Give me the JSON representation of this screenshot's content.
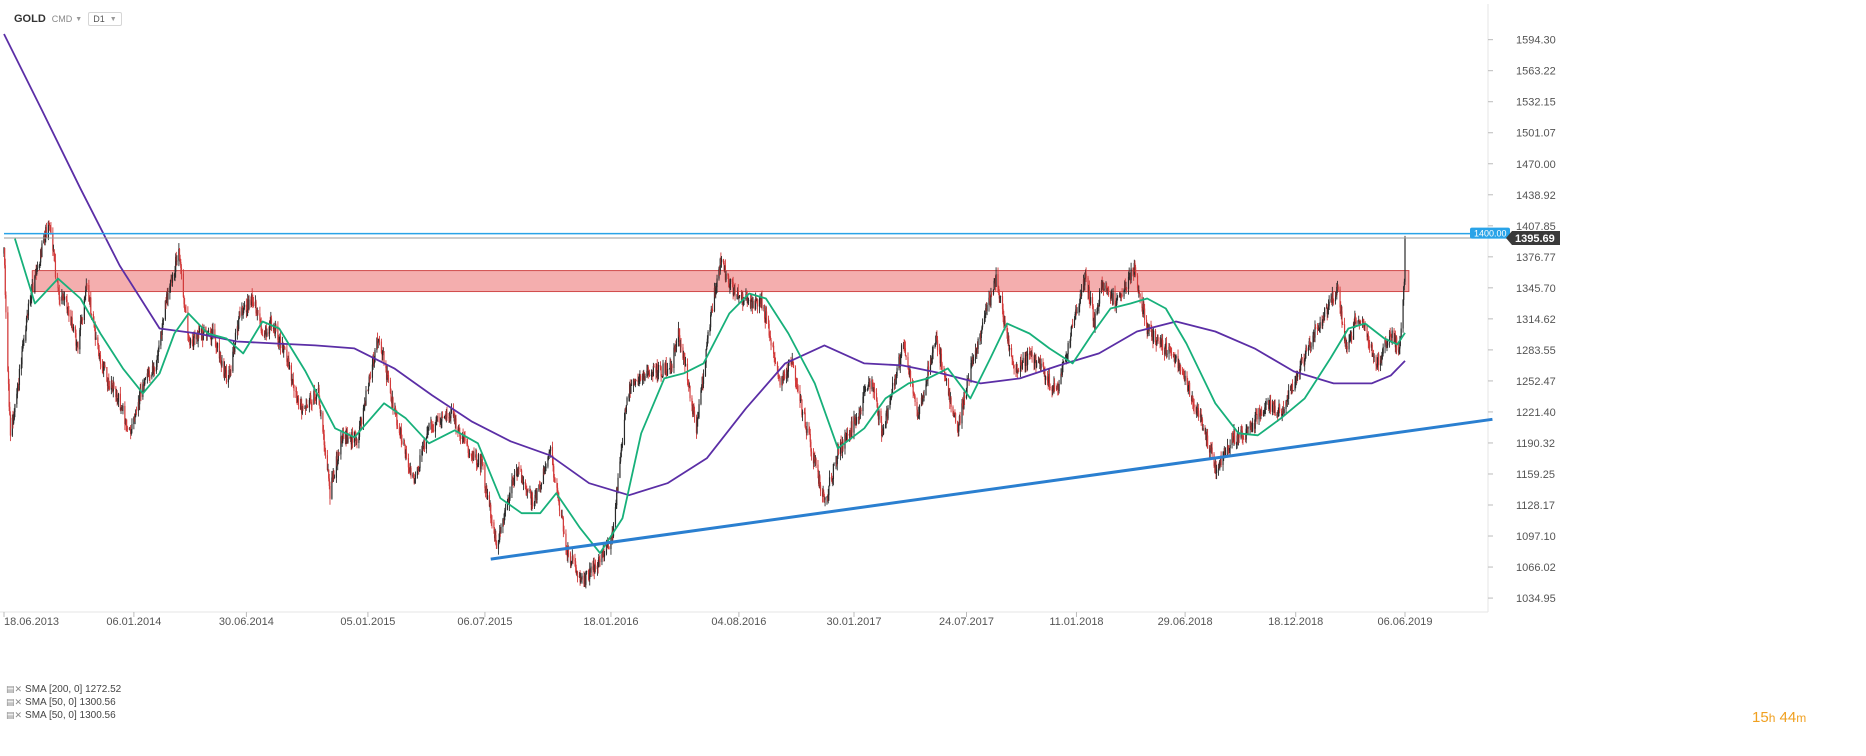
{
  "toolbar": {
    "symbol": "GOLD",
    "market": "CMD",
    "interval": "D1"
  },
  "colors": {
    "up": "#2a2a2a",
    "down": "#d23a3a",
    "sma200": "#5b2ea6",
    "sma50": "#17b07a",
    "resistance_line": "#29a3e8",
    "current_line": "#9a9a9a",
    "support_trend": "#2a7fd0",
    "zone_fill": "#f2a0a0",
    "zone_stroke": "#d04a4a"
  },
  "legend": [
    {
      "label": "SMA [200, 0] 1272.52"
    },
    {
      "label": "SMA [50, 0] 1300.56"
    },
    {
      "label": "SMA [50, 0] 1300.56"
    }
  ],
  "timer": {
    "hours": "15",
    "h_unit": "h",
    "minutes": "44",
    "m_unit": "m"
  },
  "chart_data": {
    "type": "candlestick",
    "symbol": "GOLD",
    "y_ticks": [
      "1594.30",
      "1563.22",
      "1532.15",
      "1501.07",
      "1470.00",
      "1438.92",
      "1407.85",
      "1376.77",
      "1345.70",
      "1314.62",
      "1283.55",
      "1252.47",
      "1221.40",
      "1190.32",
      "1159.25",
      "1128.17",
      "1097.10",
      "1066.02",
      "1034.95"
    ],
    "y_range": [
      1026.0,
      1612.0
    ],
    "x_ticks": [
      "18.06.2013",
      "06.01.2014",
      "30.06.2014",
      "05.01.2015",
      "06.07.2015",
      "18.01.2016",
      "04.08.2016",
      "30.01.2017",
      "24.07.2017",
      "11.01.2018",
      "29.06.2018",
      "18.12.2018",
      "06.06.2019"
    ],
    "x_range": [
      "2013-06-18",
      "2019-06-06"
    ],
    "price_labels": {
      "resistance": "1400.00",
      "current": "1395.69"
    },
    "resistance_level": 1400.0,
    "current_price": 1395.69,
    "zone": {
      "start": "2013-08-01",
      "end": "2019-06-12",
      "low": 1342,
      "high": 1363
    },
    "trendline": {
      "start": [
        "2015-07-15",
        1074
      ],
      "end": [
        "2019-10-20",
        1214
      ]
    },
    "price_path": [
      [
        "2013-06-18",
        1380
      ],
      [
        "2013-06-28",
        1195
      ],
      [
        "2013-07-10",
        1250
      ],
      [
        "2013-07-25",
        1320
      ],
      [
        "2013-08-10",
        1370
      ],
      [
        "2013-08-28",
        1415
      ],
      [
        "2013-09-10",
        1340
      ],
      [
        "2013-09-25",
        1330
      ],
      [
        "2013-10-10",
        1285
      ],
      [
        "2013-10-25",
        1350
      ],
      [
        "2013-11-10",
        1285
      ],
      [
        "2013-11-28",
        1250
      ],
      [
        "2013-12-10",
        1240
      ],
      [
        "2013-12-31",
        1200
      ],
      [
        "2014-01-20",
        1250
      ],
      [
        "2014-02-10",
        1270
      ],
      [
        "2014-02-25",
        1330
      ],
      [
        "2014-03-17",
        1385
      ],
      [
        "2014-04-01",
        1290
      ],
      [
        "2014-04-20",
        1300
      ],
      [
        "2014-05-10",
        1300
      ],
      [
        "2014-06-01",
        1250
      ],
      [
        "2014-06-20",
        1320
      ],
      [
        "2014-07-10",
        1335
      ],
      [
        "2014-07-25",
        1300
      ],
      [
        "2014-08-10",
        1310
      ],
      [
        "2014-09-05",
        1265
      ],
      [
        "2014-09-25",
        1220
      ],
      [
        "2014-10-20",
        1245
      ],
      [
        "2014-11-07",
        1140
      ],
      [
        "2014-11-25",
        1195
      ],
      [
        "2014-12-20",
        1195
      ],
      [
        "2015-01-22",
        1300
      ],
      [
        "2015-02-10",
        1235
      ],
      [
        "2015-03-17",
        1150
      ],
      [
        "2015-04-10",
        1205
      ],
      [
        "2015-05-15",
        1220
      ],
      [
        "2015-06-10",
        1180
      ],
      [
        "2015-07-01",
        1170
      ],
      [
        "2015-07-24",
        1085
      ],
      [
        "2015-08-24",
        1165
      ],
      [
        "2015-09-20",
        1130
      ],
      [
        "2015-10-15",
        1185
      ],
      [
        "2015-11-10",
        1085
      ],
      [
        "2015-12-03",
        1050
      ],
      [
        "2015-12-28",
        1070
      ],
      [
        "2016-01-20",
        1095
      ],
      [
        "2016-02-12",
        1240
      ],
      [
        "2016-03-10",
        1260
      ],
      [
        "2016-04-20",
        1265
      ],
      [
        "2016-05-02",
        1300
      ],
      [
        "2016-05-30",
        1205
      ],
      [
        "2016-06-23",
        1325
      ],
      [
        "2016-07-06",
        1370
      ],
      [
        "2016-07-30",
        1340
      ],
      [
        "2016-08-25",
        1330
      ],
      [
        "2016-09-10",
        1330
      ],
      [
        "2016-10-07",
        1250
      ],
      [
        "2016-10-25",
        1270
      ],
      [
        "2016-11-10",
        1225
      ],
      [
        "2016-12-15",
        1130
      ],
      [
        "2017-01-05",
        1180
      ],
      [
        "2017-01-30",
        1210
      ],
      [
        "2017-02-27",
        1255
      ],
      [
        "2017-03-15",
        1200
      ],
      [
        "2017-04-17",
        1290
      ],
      [
        "2017-05-09",
        1215
      ],
      [
        "2017-06-06",
        1295
      ],
      [
        "2017-07-10",
        1205
      ],
      [
        "2017-08-01",
        1270
      ],
      [
        "2017-09-08",
        1355
      ],
      [
        "2017-10-06",
        1260
      ],
      [
        "2017-11-01",
        1280
      ],
      [
        "2017-12-12",
        1240
      ],
      [
        "2018-01-25",
        1360
      ],
      [
        "2018-02-08",
        1310
      ],
      [
        "2018-02-20",
        1350
      ],
      [
        "2018-03-15",
        1330
      ],
      [
        "2018-04-11",
        1365
      ],
      [
        "2018-05-01",
        1305
      ],
      [
        "2018-05-20",
        1290
      ],
      [
        "2018-06-15",
        1275
      ],
      [
        "2018-07-20",
        1220
      ],
      [
        "2018-08-16",
        1165
      ],
      [
        "2018-09-10",
        1195
      ],
      [
        "2018-10-05",
        1200
      ],
      [
        "2018-11-01",
        1230
      ],
      [
        "2018-11-28",
        1220
      ],
      [
        "2018-12-20",
        1260
      ],
      [
        "2019-01-10",
        1290
      ],
      [
        "2019-02-20",
        1345
      ],
      [
        "2019-03-07",
        1285
      ],
      [
        "2019-03-25",
        1320
      ],
      [
        "2019-04-23",
        1270
      ],
      [
        "2019-05-15",
        1300
      ],
      [
        "2019-05-28",
        1285
      ],
      [
        "2019-06-03",
        1330
      ],
      [
        "2019-06-05",
        1358
      ],
      [
        "2019-06-06",
        1395.69
      ]
    ],
    "sma50": [
      [
        "2013-07-05",
        1395
      ],
      [
        "2013-08-05",
        1330
      ],
      [
        "2013-09-10",
        1355
      ],
      [
        "2013-10-15",
        1335
      ],
      [
        "2013-11-15",
        1300
      ],
      [
        "2013-12-20",
        1265
      ],
      [
        "2014-01-20",
        1240
      ],
      [
        "2014-02-15",
        1260
      ],
      [
        "2014-03-10",
        1300
      ],
      [
        "2014-04-01",
        1320
      ],
      [
        "2014-05-01",
        1300
      ],
      [
        "2014-05-30",
        1295
      ],
      [
        "2014-06-25",
        1280
      ],
      [
        "2014-07-25",
        1312
      ],
      [
        "2014-08-20",
        1305
      ],
      [
        "2014-09-30",
        1262
      ],
      [
        "2014-11-15",
        1205
      ],
      [
        "2014-12-15",
        1196
      ],
      [
        "2015-01-30",
        1230
      ],
      [
        "2015-03-05",
        1215
      ],
      [
        "2015-04-10",
        1190
      ],
      [
        "2015-05-20",
        1203
      ],
      [
        "2015-06-25",
        1190
      ],
      [
        "2015-07-30",
        1135
      ],
      [
        "2015-09-01",
        1120
      ],
      [
        "2015-09-30",
        1120
      ],
      [
        "2015-10-25",
        1140
      ],
      [
        "2015-12-01",
        1105
      ],
      [
        "2016-01-01",
        1080
      ],
      [
        "2016-02-05",
        1115
      ],
      [
        "2016-03-05",
        1200
      ],
      [
        "2016-04-10",
        1255
      ],
      [
        "2016-05-10",
        1260
      ],
      [
        "2016-06-10",
        1270
      ],
      [
        "2016-07-20",
        1320
      ],
      [
        "2016-08-20",
        1340
      ],
      [
        "2016-09-15",
        1335
      ],
      [
        "2016-10-20",
        1300
      ],
      [
        "2016-11-30",
        1250
      ],
      [
        "2017-01-05",
        1185
      ],
      [
        "2017-02-15",
        1205
      ],
      [
        "2017-03-20",
        1235
      ],
      [
        "2017-04-25",
        1250
      ],
      [
        "2017-05-25",
        1255
      ],
      [
        "2017-06-25",
        1265
      ],
      [
        "2017-07-30",
        1235
      ],
      [
        "2017-08-30",
        1275
      ],
      [
        "2017-09-25",
        1310
      ],
      [
        "2017-10-30",
        1300
      ],
      [
        "2017-11-30",
        1285
      ],
      [
        "2018-01-05",
        1270
      ],
      [
        "2018-02-05",
        1300
      ],
      [
        "2018-03-05",
        1325
      ],
      [
        "2018-04-05",
        1330
      ],
      [
        "2018-05-01",
        1335
      ],
      [
        "2018-05-30",
        1325
      ],
      [
        "2018-07-01",
        1290
      ],
      [
        "2018-08-15",
        1230
      ],
      [
        "2018-09-20",
        1200
      ],
      [
        "2018-10-20",
        1198
      ],
      [
        "2018-11-25",
        1215
      ],
      [
        "2019-01-01",
        1235
      ],
      [
        "2019-02-10",
        1275
      ],
      [
        "2019-03-10",
        1305
      ],
      [
        "2019-04-05",
        1310
      ],
      [
        "2019-05-05",
        1295
      ],
      [
        "2019-05-25",
        1289
      ],
      [
        "2019-06-06",
        1300.56
      ]
    ],
    "sma200": [
      [
        "2013-06-18",
        1600
      ],
      [
        "2013-08-15",
        1525
      ],
      [
        "2013-10-15",
        1445
      ],
      [
        "2013-12-15",
        1368
      ],
      [
        "2014-02-15",
        1305
      ],
      [
        "2014-04-15",
        1300
      ],
      [
        "2014-06-15",
        1292
      ],
      [
        "2014-08-15",
        1290
      ],
      [
        "2014-10-15",
        1288
      ],
      [
        "2014-12-15",
        1285
      ],
      [
        "2015-02-15",
        1265
      ],
      [
        "2015-04-15",
        1238
      ],
      [
        "2015-06-15",
        1212
      ],
      [
        "2015-08-15",
        1192
      ],
      [
        "2015-10-15",
        1178
      ],
      [
        "2015-12-15",
        1150
      ],
      [
        "2016-02-15",
        1138
      ],
      [
        "2016-04-15",
        1150
      ],
      [
        "2016-06-15",
        1175
      ],
      [
        "2016-08-15",
        1225
      ],
      [
        "2016-10-15",
        1270
      ],
      [
        "2016-12-15",
        1288
      ],
      [
        "2017-02-15",
        1270
      ],
      [
        "2017-04-15",
        1268
      ],
      [
        "2017-06-15",
        1260
      ],
      [
        "2017-08-15",
        1250
      ],
      [
        "2017-10-15",
        1255
      ],
      [
        "2017-12-15",
        1268
      ],
      [
        "2018-02-15",
        1280
      ],
      [
        "2018-04-15",
        1302
      ],
      [
        "2018-06-15",
        1312
      ],
      [
        "2018-08-15",
        1302
      ],
      [
        "2018-10-15",
        1285
      ],
      [
        "2018-12-15",
        1262
      ],
      [
        "2019-02-15",
        1250
      ],
      [
        "2019-04-15",
        1250
      ],
      [
        "2019-05-15",
        1258
      ],
      [
        "2019-06-06",
        1272.52
      ]
    ]
  }
}
